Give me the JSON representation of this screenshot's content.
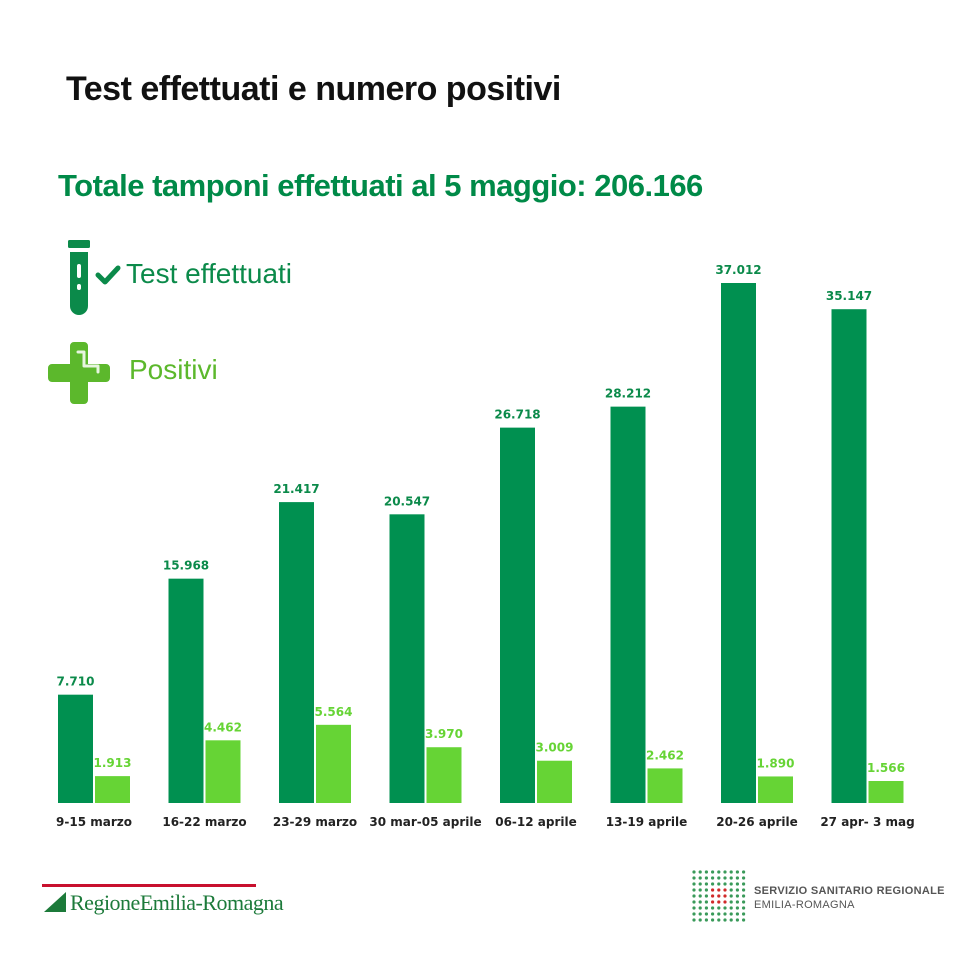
{
  "header": {
    "title": "Test effettuati e numero positivi",
    "subtitle": "Totale tamponi effettuati al 5 maggio: 206.166"
  },
  "colors": {
    "tests": "#009050",
    "positives": "#66d435",
    "subtitle": "#008a48",
    "legend_tests_text": "#0b8a4a",
    "legend_positives_text": "#5cb82c"
  },
  "legend": {
    "tests_label": "Test effettuati",
    "tests_icon": "test-tube-check-icon",
    "positives_label": "Positivi",
    "positives_icon": "plus-cross-icon"
  },
  "chart_data": {
    "type": "bar",
    "categories": [
      "9-15 marzo",
      "16-22 marzo",
      "23-29 marzo",
      "30 mar-05 aprile",
      "06-12 aprile",
      "13-19 aprile",
      "20-26 aprile",
      "27 apr- 3 mag"
    ],
    "series": [
      {
        "name": "Test effettuati",
        "values": [
          7710,
          15968,
          21417,
          20547,
          26718,
          28212,
          37012,
          35147
        ],
        "labels": [
          "7.710",
          "15.968",
          "21.417",
          "20.547",
          "26.718",
          "28.212",
          "37.012",
          "35.147"
        ]
      },
      {
        "name": "Positivi",
        "values": [
          1913,
          4462,
          5564,
          3970,
          3009,
          2462,
          1890,
          1566
        ],
        "labels": [
          "1.913",
          "4.462",
          "5.564",
          "3.970",
          "3.009",
          "2.462",
          "1.890",
          "1.566"
        ]
      }
    ],
    "ylim": [
      0,
      37012
    ],
    "grid": false,
    "legend": "top-left"
  },
  "footer": {
    "region_logo": "RegioneEmilia-Romagna",
    "service_logo_line1": "SERVIZIO SANITARIO REGIONALE",
    "service_logo_line2": "EMILIA-ROMAGNA"
  }
}
